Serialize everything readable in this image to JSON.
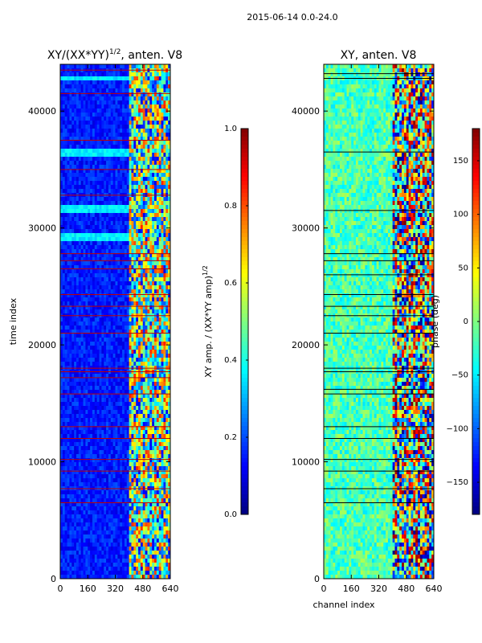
{
  "figure": {
    "suptitle": "2015-06-14 0.0-24.0"
  },
  "chart_data": [
    {
      "type": "heatmap",
      "title_main": "XY/(XX*YY)",
      "title_sup": "1/2",
      "title_rest": ", anten. V8",
      "xlabel": "",
      "ylabel": "time index",
      "xlim": [
        0,
        640
      ],
      "ylim": [
        0,
        44000
      ],
      "xticks": [
        0,
        160,
        320,
        480,
        640
      ],
      "xtick_labels": [
        "0",
        "160",
        "320",
        "480",
        "640"
      ],
      "yticks": [
        0,
        10000,
        20000,
        30000,
        40000
      ],
      "ytick_labels": [
        "0",
        "10000",
        "20000",
        "30000",
        "40000"
      ],
      "colormap": "jet",
      "colorbar": {
        "label_main": "XY amp. / (XX*YY amp)",
        "label_sup": "1/2",
        "range": [
          0.0,
          1.0
        ],
        "ticks": [
          0.0,
          0.2,
          0.4,
          0.6,
          0.8,
          1.0
        ],
        "tick_labels": [
          "0.0",
          "0.2",
          "0.4",
          "0.6",
          "0.8",
          "1.0"
        ]
      },
      "background_value": 0.15,
      "active_channel_range": [
        400,
        640
      ],
      "bright_bands_time": [
        29200,
        31500,
        36500,
        42800
      ],
      "flag_lines_time": [
        6500,
        7700,
        9200,
        10200,
        12000,
        13000,
        15800,
        17200,
        17700,
        18000,
        21000,
        22500,
        23300,
        24300,
        26500,
        27200,
        27800,
        32800,
        35000,
        37500,
        41500,
        43500
      ]
    },
    {
      "type": "heatmap",
      "title_main": "XY, anten. V8",
      "title_sup": "",
      "title_rest": "",
      "xlabel": "channel index",
      "ylabel": "",
      "xlim": [
        0,
        640
      ],
      "ylim": [
        0,
        44000
      ],
      "xticks": [
        0,
        160,
        320,
        480,
        640
      ],
      "xtick_labels": [
        "0",
        "160",
        "320",
        "480",
        "640"
      ],
      "yticks": [
        0,
        10000,
        20000,
        30000,
        40000
      ],
      "ytick_labels": [
        "0",
        "10000",
        "20000",
        "30000",
        "40000"
      ],
      "colormap": "jet",
      "colorbar": {
        "label_main": "phase (deg)",
        "label_sup": "",
        "range": [
          -180,
          180
        ],
        "ticks": [
          -150,
          -100,
          -50,
          0,
          50,
          100,
          150
        ],
        "tick_labels": [
          "−150",
          "−100",
          "−50",
          "0",
          "50",
          "100",
          "150"
        ]
      },
      "background_value": 0.45,
      "active_channel_range": [
        400,
        640
      ],
      "flag_lines_time": [
        6500,
        7700,
        9200,
        10200,
        12000,
        13000,
        15800,
        16200,
        17700,
        18000,
        21000,
        22500,
        23300,
        24300,
        26000,
        27200,
        27800,
        31500,
        36500,
        42800,
        43200
      ]
    }
  ]
}
